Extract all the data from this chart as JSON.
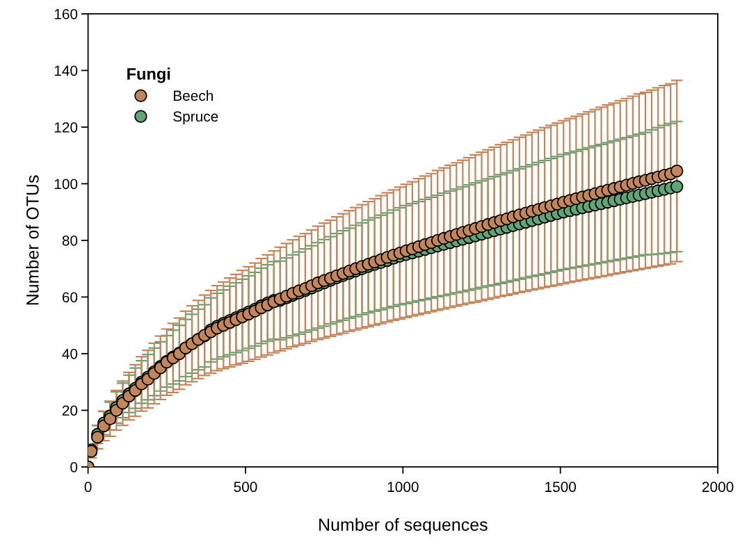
{
  "chart_data": {
    "type": "scatter",
    "xlabel": "Number of sequences",
    "ylabel": "Number of OTUs",
    "legend_title": "Fungi",
    "legend": "top left",
    "marker": "circle",
    "grid": false,
    "xlim": [
      0,
      2000
    ],
    "xticks": [
      0,
      500,
      1000,
      1500,
      2000
    ],
    "ylim": [
      0,
      160
    ],
    "yticks": [
      0,
      20,
      40,
      60,
      80,
      100,
      120,
      140,
      160
    ],
    "x": [
      0,
      10,
      30,
      50,
      70,
      90,
      110,
      130,
      150,
      170,
      190,
      210,
      230,
      250,
      270,
      290,
      310,
      330,
      350,
      370,
      390,
      410,
      430,
      450,
      470,
      490,
      510,
      530,
      550,
      570,
      590,
      610,
      630,
      650,
      670,
      690,
      710,
      730,
      750,
      770,
      790,
      810,
      830,
      850,
      870,
      890,
      910,
      930,
      950,
      970,
      990,
      1010,
      1030,
      1050,
      1070,
      1090,
      1110,
      1130,
      1150,
      1170,
      1190,
      1210,
      1230,
      1250,
      1270,
      1290,
      1310,
      1330,
      1350,
      1370,
      1390,
      1410,
      1430,
      1450,
      1470,
      1490,
      1510,
      1530,
      1550,
      1570,
      1590,
      1610,
      1630,
      1650,
      1670,
      1690,
      1710,
      1730,
      1750,
      1770,
      1790,
      1810,
      1830,
      1850,
      1870
    ],
    "series": [
      {
        "name": "Spruce",
        "color": "#5fa576",
        "values": [
          0,
          6,
          11.5,
          15.5,
          18,
          21,
          23.5,
          25.8,
          27.8,
          30,
          31.7,
          33.6,
          35.5,
          37.3,
          38.8,
          40.2,
          42,
          43.5,
          45,
          46.3,
          48.4,
          49.7,
          50.7,
          51.7,
          52.7,
          53.7,
          54.7,
          55.7,
          56.9,
          57.9,
          58.8,
          58.8,
          59.7,
          60.6,
          61.4,
          62.3,
          63.2,
          64.1,
          65,
          65.9,
          66.8,
          67.6,
          68.4,
          69.2,
          70,
          70.8,
          71.5,
          72.2,
          72.9,
          73.7,
          74.4,
          75,
          75.6,
          76.2,
          76.8,
          77.4,
          78,
          78.6,
          79.2,
          79.8,
          80.4,
          81,
          81.6,
          82.2,
          82.8,
          83.4,
          84,
          84.6,
          85.2,
          85.8,
          86.4,
          87,
          87.6,
          88.2,
          88.8,
          89.4,
          90,
          90.5,
          91,
          91.5,
          92,
          92.5,
          93,
          93.5,
          94,
          94.5,
          95,
          95.5,
          96,
          96.5,
          97,
          97.5,
          98,
          98.5,
          99
        ],
        "errors": [
          0,
          1.8,
          3.2,
          4.1,
          4.9,
          5.5,
          6.1,
          6.6,
          7.1,
          7.5,
          8,
          8.4,
          8.7,
          9.1,
          9.5,
          9.8,
          10.1,
          10.4,
          10.7,
          11,
          11.3,
          11.6,
          11.8,
          12.1,
          12.3,
          12.6,
          12.8,
          13,
          13.3,
          13.5,
          13.7,
          13.9,
          14.1,
          14.3,
          14.5,
          14.7,
          14.9,
          15.1,
          15.3,
          15.4,
          15.6,
          15.8,
          15.9,
          16.1,
          16.2,
          16.4,
          16.5,
          16.7,
          16.8,
          17,
          17.1,
          17.3,
          17.4,
          17.5,
          17.7,
          17.8,
          17.9,
          18.1,
          18.2,
          18.3,
          18.5,
          18.6,
          18.7,
          18.8,
          18.9,
          19.1,
          19.2,
          19.3,
          19.4,
          19.5,
          19.6,
          19.7,
          19.9,
          20,
          20.1,
          20.2,
          20.3,
          20.4,
          20.5,
          20.6,
          20.7,
          20.8,
          20.9,
          21,
          21.1,
          21.2,
          21.3,
          21.4,
          21.5,
          21.6,
          22,
          22.3,
          22.6,
          22.8,
          23
        ]
      },
      {
        "name": "Beech",
        "color": "#c3865a",
        "values": [
          0,
          5.5,
          10.5,
          14.5,
          17,
          20,
          22.5,
          25,
          27,
          29.3,
          31,
          33,
          35,
          37,
          38.5,
          40,
          42,
          43.5,
          45,
          46.5,
          47.7,
          49,
          50,
          51,
          52,
          53,
          54,
          55,
          56.2,
          57.2,
          58.3,
          59.3,
          60.3,
          61.3,
          62.2,
          63,
          64,
          65,
          65.8,
          66.6,
          67.5,
          68.3,
          69.2,
          70,
          70.8,
          71.6,
          72.4,
          73.2,
          74,
          74.8,
          75.5,
          76.3,
          77,
          77.8,
          78.5,
          79.2,
          80,
          80.7,
          81.4,
          82.1,
          82.8,
          83.5,
          84.2,
          84.9,
          85.6,
          86.3,
          87,
          87.6,
          88.3,
          89,
          89.6,
          90.3,
          90.9,
          91.6,
          92.2,
          92.8,
          93.5,
          94.1,
          94.7,
          95.3,
          95.9,
          96.5,
          97.1,
          97.7,
          98.3,
          98.9,
          99.5,
          100.1,
          100.7,
          101.2,
          101.8,
          102.4,
          103,
          103.5,
          104.5
        ],
        "errors": [
          0,
          2.3,
          4.1,
          5.2,
          6.2,
          7,
          7.8,
          8.4,
          9.1,
          9.6,
          10.2,
          10.7,
          11.2,
          11.7,
          12.2,
          12.6,
          13,
          13.4,
          13.8,
          14.2,
          14.6,
          15,
          15.3,
          15.7,
          16,
          16.4,
          16.7,
          17,
          17.4,
          17.7,
          18,
          18.3,
          18.6,
          18.9,
          19.2,
          19.4,
          19.7,
          20,
          20.3,
          20.5,
          20.8,
          21.1,
          21.3,
          21.6,
          21.8,
          22.1,
          22.3,
          22.6,
          22.8,
          23,
          23.3,
          23.5,
          23.7,
          24,
          24.2,
          24.4,
          24.7,
          24.9,
          25.1,
          25.3,
          25.5,
          25.7,
          26,
          26.2,
          26.4,
          26.6,
          26.8,
          27,
          27.2,
          27.4,
          27.6,
          27.8,
          28,
          28.2,
          28.4,
          28.6,
          28.8,
          28.9,
          29.1,
          29.3,
          29.5,
          29.7,
          29.9,
          30.1,
          30.2,
          30.4,
          30.6,
          30.8,
          31,
          31.1,
          31.3,
          31.5,
          31.7,
          31.8,
          32
        ]
      }
    ]
  }
}
